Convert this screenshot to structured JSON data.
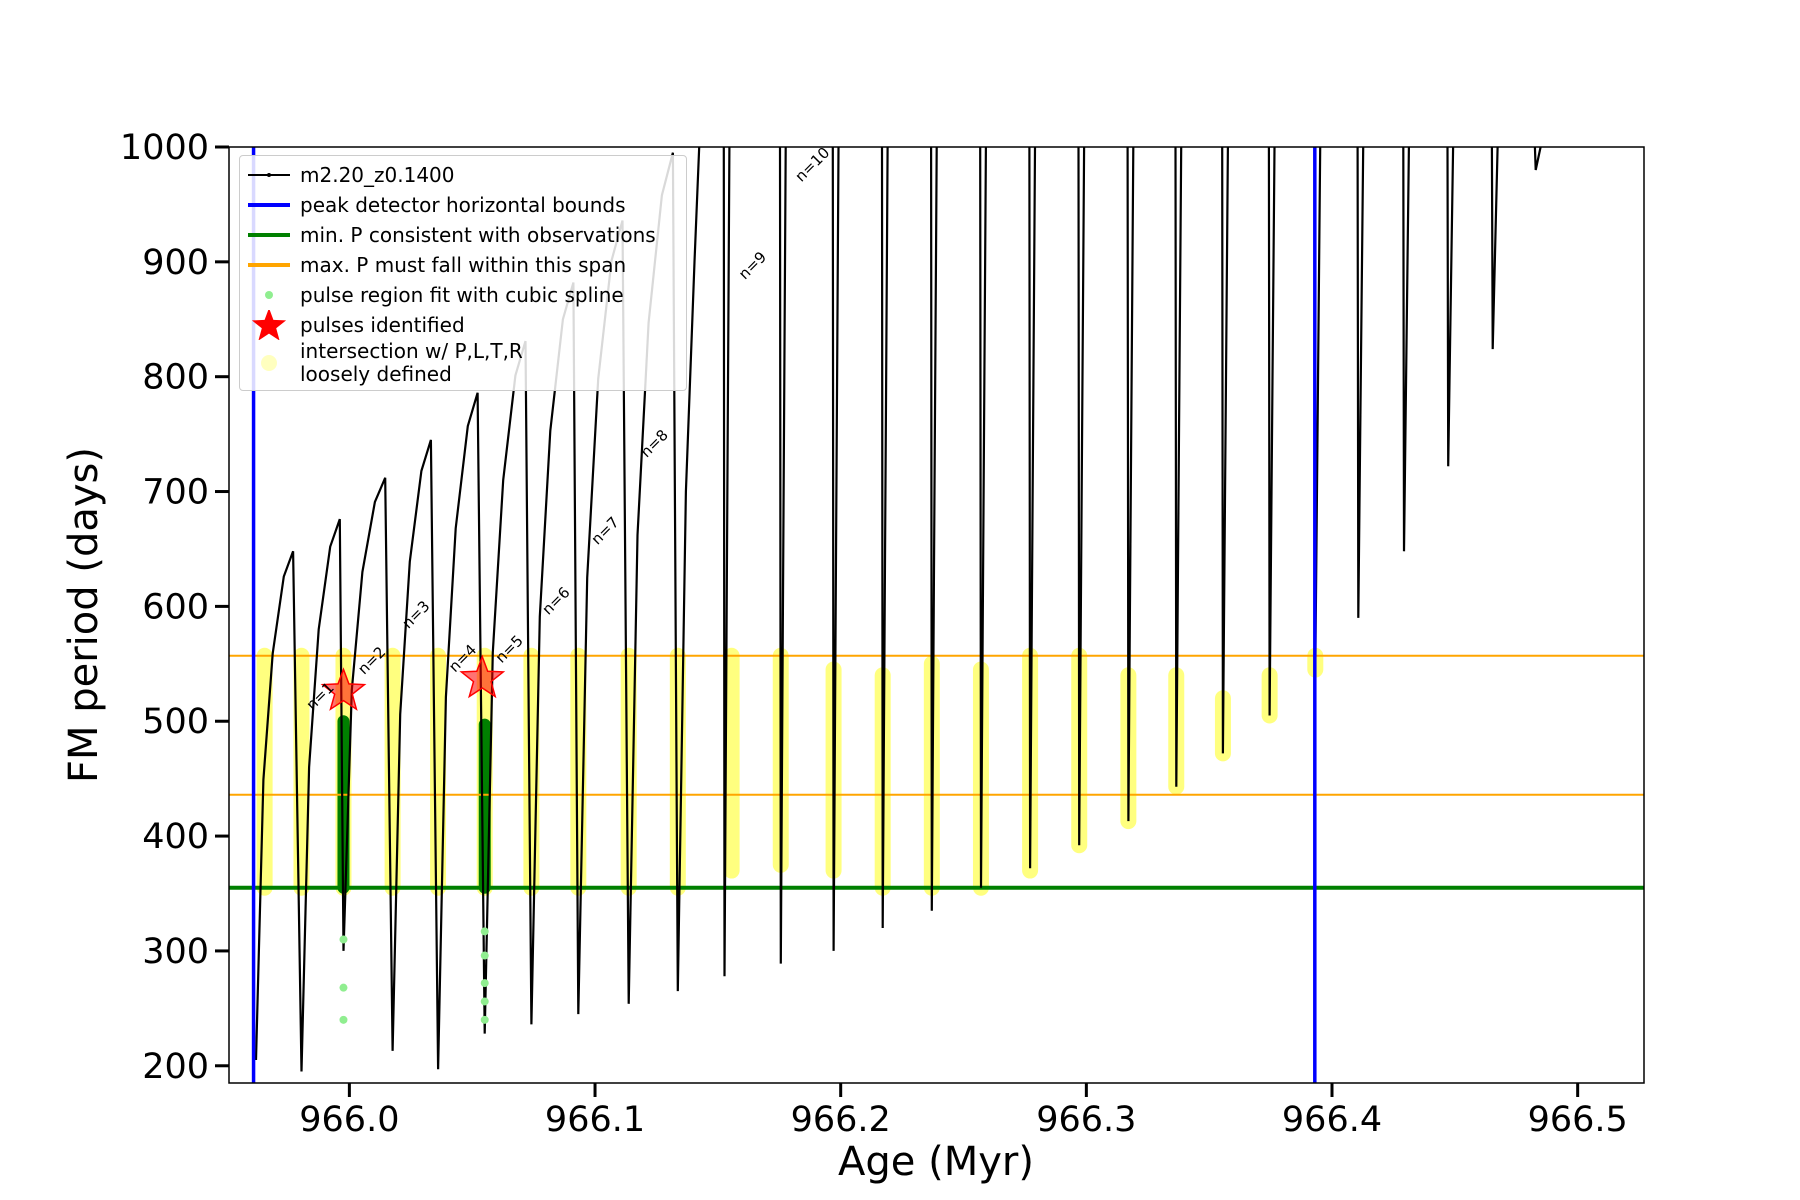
{
  "chart_data": {
    "type": "line",
    "x_label": "Age (Myr)",
    "y_label": "FM period (days)",
    "xlim": [
      965.951,
      966.527
    ],
    "ylim": [
      185,
      1000
    ],
    "xticks": [
      {
        "value": 966.0,
        "label": "966.0"
      },
      {
        "value": 966.1,
        "label": "966.1"
      },
      {
        "value": 966.2,
        "label": "966.2"
      },
      {
        "value": 966.3,
        "label": "966.3"
      },
      {
        "value": 966.4,
        "label": "966.4"
      },
      {
        "value": 966.5,
        "label": "966.5"
      }
    ],
    "yticks": [
      200,
      300,
      400,
      500,
      600,
      700,
      800,
      900,
      1000
    ],
    "legend": "upper left",
    "series": [
      {
        "name": "m2.20_z0.1400",
        "type": "line",
        "color": "#000000",
        "x": [
          965.962,
          965.965,
          965.9688,
          965.9733,
          965.9771,
          965.9805,
          965.9836,
          965.9875,
          965.9922,
          965.9961,
          965.9976,
          966.001,
          966.0053,
          966.0104,
          966.0146,
          966.0176,
          966.0207,
          966.0246,
          966.0293,
          966.0332,
          966.0361,
          966.0393,
          966.0433,
          966.0482,
          966.0522,
          966.0551,
          966.0584,
          966.0626,
          966.0676,
          966.0717,
          966.0741,
          966.0775,
          966.0818,
          966.0869,
          966.0912,
          966.0932,
          966.0968,
          966.1013,
          966.1067,
          966.1112,
          966.1137,
          966.1173,
          966.1218,
          966.1272,
          966.1317,
          966.1337,
          966.137,
          966.1405,
          966.1424,
          null,
          966.1524,
          966.1527,
          966.1547,
          null,
          966.1753,
          966.1756,
          966.1776,
          null,
          966.1968,
          966.1971,
          966.1991,
          null,
          966.2168,
          966.2171,
          966.2191,
          null,
          966.2368,
          966.2371,
          966.2391,
          null,
          966.2568,
          966.2571,
          966.2591,
          null,
          966.2768,
          966.2771,
          966.2791,
          null,
          966.2968,
          966.2971,
          966.2991,
          null,
          966.3168,
          966.3171,
          966.3191,
          null,
          966.3363,
          966.3366,
          966.3386,
          null,
          966.3553,
          966.3556,
          966.3576,
          null,
          966.3743,
          966.3746,
          966.3766,
          null,
          966.3929,
          966.3932,
          966.3952,
          null,
          966.4104,
          966.4107,
          966.4127,
          null,
          966.429,
          966.4293,
          966.4313,
          null,
          966.447,
          966.4473,
          966.4493,
          null,
          966.4651,
          966.4654,
          966.4674,
          null,
          966.4826,
          966.4829,
          966.4849
        ],
        "values": [
          205,
          449,
          559,
          626,
          648,
          195,
          460,
          580,
          652,
          676,
          300,
          527,
          630,
          691,
          712,
          213,
          506,
          639,
          718,
          745,
          197,
          521,
          668,
          757,
          786,
          228,
          560,
          710,
          801,
          831,
          236,
          591,
          753,
          850,
          882,
          245,
          625,
          798,
          901,
          936,
          254,
          662,
          847,
          958,
          995,
          265,
          700,
          900,
          1000,
          null,
          1000,
          278,
          1000,
          null,
          1000,
          289,
          1000,
          null,
          1000,
          300,
          1000,
          null,
          1000,
          320,
          1000,
          null,
          1000,
          335,
          1000,
          null,
          1000,
          355,
          1000,
          null,
          1000,
          372,
          1000,
          null,
          1000,
          392,
          1000,
          null,
          1000,
          413,
          1000,
          null,
          1000,
          443,
          1000,
          null,
          1000,
          472,
          1000,
          null,
          1000,
          505,
          1000,
          null,
          1000,
          545,
          1000,
          null,
          1000,
          590,
          1000,
          null,
          1000,
          648,
          1000,
          null,
          1000,
          722,
          1000,
          null,
          1000,
          824,
          1000,
          null,
          1000,
          980,
          1000
        ]
      },
      {
        "name": "peak detector horizontal bounds",
        "type": "vline",
        "color": "#0000ff",
        "x": [
          965.961,
          966.393
        ]
      },
      {
        "name": "min. P consistent with observations",
        "type": "hline",
        "color": "#008000",
        "values": [
          355
        ]
      },
      {
        "name": "max. P must fall within this span",
        "type": "hline",
        "color": "#ffa500",
        "values": [
          436,
          557
        ]
      },
      {
        "name": "pulse region fit with cubic spline",
        "type": "scatter",
        "color": "#90ee90",
        "x": [
          965.9976,
          965.9976,
          965.9976,
          966.0551,
          966.0551,
          966.0551,
          966.0551,
          966.0551
        ],
        "values": [
          310,
          268,
          240,
          317,
          296,
          272,
          256,
          240
        ]
      },
      {
        "name": "pulses identified",
        "type": "star",
        "color": "#ff0000",
        "x": [
          965.9976,
          966.0541
        ],
        "values": [
          526,
          537
        ]
      },
      {
        "name": "intersection w/ P,L,T,R\nloosely defined",
        "type": "range",
        "color": "#ffff00",
        "x": [
          965.9655,
          965.9805,
          965.9976,
          966.0176,
          966.0361,
          966.0551,
          966.0741,
          966.0932,
          966.1137,
          966.1337,
          966.1556,
          966.1756,
          966.1971,
          966.2171,
          966.2371,
          966.2571,
          966.2771,
          966.2971,
          966.3171,
          966.3366,
          966.3556,
          966.3746,
          966.3932
        ],
        "low": [
          355,
          355,
          355,
          355,
          355,
          355,
          355,
          355,
          355,
          355,
          370,
          375,
          370,
          355,
          355,
          355,
          370,
          392,
          413,
          443,
          472,
          505,
          545
        ],
        "high": [
          557,
          557,
          557,
          557,
          557,
          557,
          557,
          557,
          557,
          557,
          557,
          557,
          545,
          540,
          550,
          545,
          557,
          557,
          540,
          540,
          520,
          540,
          557
        ]
      },
      {
        "type": "range",
        "color": "#008000",
        "x": [
          965.9976,
          966.0551
        ],
        "low": [
          355,
          355
        ],
        "high": [
          500,
          497
        ]
      }
    ],
    "annotations": [
      {
        "text": "n=1",
        "x": 965.985,
        "y": 509
      },
      {
        "text": "n=2",
        "x": 966.006,
        "y": 540
      },
      {
        "text": "n=3",
        "x": 966.024,
        "y": 580
      },
      {
        "text": "n=4",
        "x": 966.043,
        "y": 542
      },
      {
        "text": "n=5",
        "x": 966.062,
        "y": 550
      },
      {
        "text": "n=6",
        "x": 966.081,
        "y": 592
      },
      {
        "text": "n=7",
        "x": 966.101,
        "y": 653
      },
      {
        "text": "n=8",
        "x": 966.121,
        "y": 729
      },
      {
        "text": "n=9",
        "x": 966.161,
        "y": 884
      },
      {
        "text": "n=10",
        "x": 966.184,
        "y": 969
      }
    ]
  }
}
